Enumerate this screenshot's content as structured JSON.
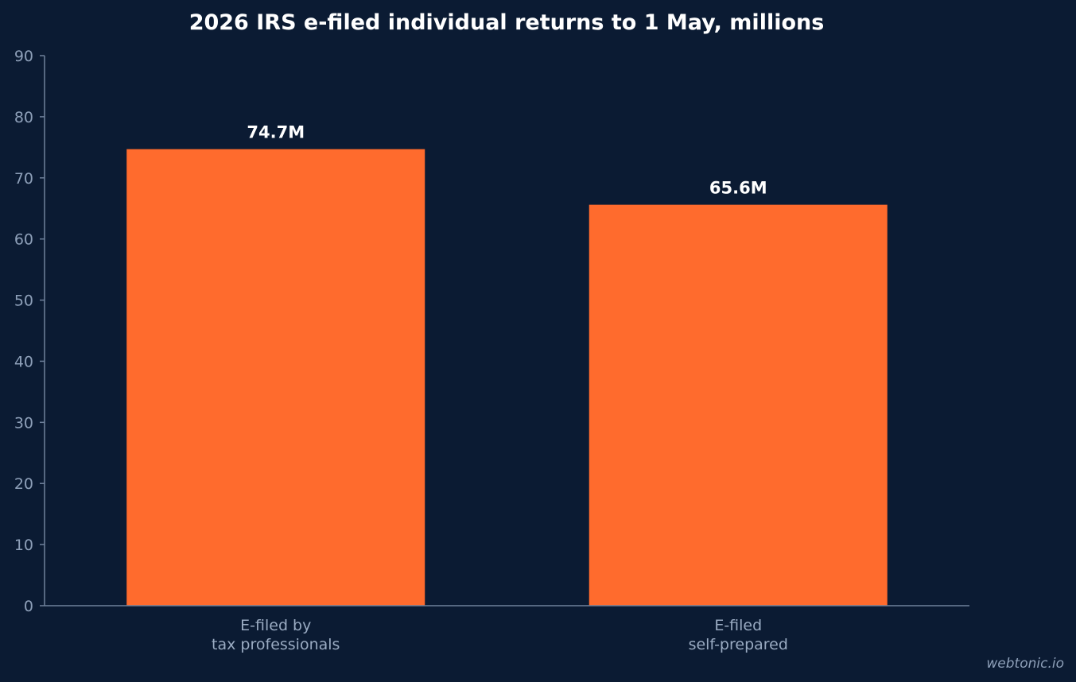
{
  "chart_data": {
    "type": "bar",
    "title": "2026 IRS e-filed individual returns to 1 May, millions",
    "categories": [
      [
        "E-filed by",
        "tax professionals"
      ],
      [
        "E-filed",
        "self-prepared"
      ]
    ],
    "values": [
      74.7,
      65.6
    ],
    "value_labels": [
      "74.7M",
      "65.6M"
    ],
    "ylim": [
      0,
      90
    ],
    "yticks": [
      0,
      10,
      20,
      30,
      40,
      50,
      60,
      70,
      80,
      90
    ],
    "grid": false,
    "legend": "none",
    "colors": {
      "background": "#0b1b33",
      "bar": "#ff6b2d",
      "axis": "#6f819b"
    }
  },
  "footer": {
    "watermark": "webtonic.io"
  }
}
